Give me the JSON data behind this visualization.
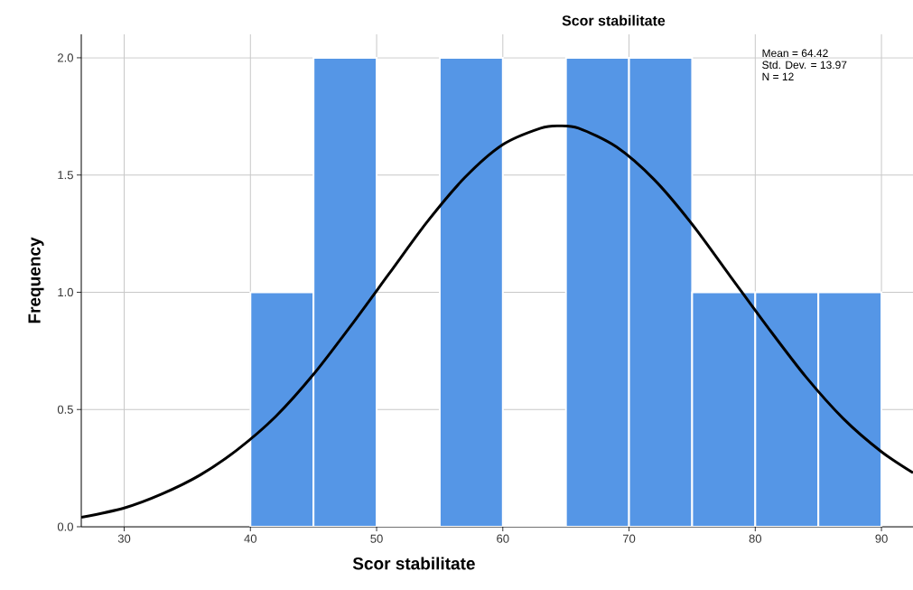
{
  "chart_data": {
    "type": "histogram",
    "title": "Scor stabilitate",
    "xlabel": "Scor stabilitate",
    "ylabel": "Frequency",
    "bins": [
      40,
      45,
      50,
      55,
      60,
      65,
      70,
      75,
      80,
      85,
      90
    ],
    "values": [
      1,
      2,
      0,
      2,
      0,
      2,
      2,
      1,
      1,
      1
    ],
    "color": "#5596e6",
    "series": [
      {
        "type": "line",
        "color": "#000000",
        "x": [
          26.6,
          30,
          33,
          36,
          39,
          42,
          45,
          48,
          51,
          54,
          57,
          60,
          63,
          64.42,
          66,
          69,
          72,
          75,
          78,
          81,
          84,
          87,
          90,
          92.5
        ],
        "values": [
          0.04,
          0.08,
          0.14,
          0.22,
          0.33,
          0.47,
          0.65,
          0.86,
          1.08,
          1.3,
          1.49,
          1.63,
          1.7,
          1.71,
          1.7,
          1.62,
          1.48,
          1.29,
          1.07,
          0.85,
          0.64,
          0.46,
          0.32,
          0.23
        ]
      }
    ],
    "annotations": [
      "Mean = 64.42",
      "Std. Dev. = 13.97",
      "N = 12"
    ],
    "xlim": [
      26.6,
      92.5
    ],
    "ylim": [
      0,
      2.1
    ],
    "xticks": [
      30,
      40,
      50,
      60,
      70,
      80,
      90
    ],
    "yticks": [
      {
        "value": 0,
        "label": "0.0"
      },
      {
        "value": 0.5,
        "label": "0.5"
      },
      {
        "value": 1,
        "label": "1.0"
      },
      {
        "value": 1.5,
        "label": "1.5"
      },
      {
        "value": 2,
        "label": "2.0"
      }
    ],
    "grid": true
  }
}
